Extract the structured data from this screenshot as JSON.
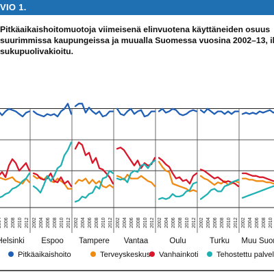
{
  "figure_label": "VIO 1.",
  "title_lines": [
    "Pitkäaikaishoitomuotoja viimeisenä elinvuotena käyttäneiden osuus",
    "suurimmissa kaupungeissa ja muualla Suomessa vuosina 2002–13, ikä- ja",
    "sukupuolivakioitu."
  ],
  "chart_data": {
    "type": "line",
    "title": "Pitkäaikaishoitomuotoja viimeisenä elinvuotena käyttäneiden osuus suurimmissa kaupungeissa ja muualla Suomessa vuosina 2002–13, ikä- ja sukupuolivakioitu.",
    "xlabel": "",
    "ylabel": "",
    "x_ticks": [
      "2002",
      "2004",
      "2006",
      "2008",
      "2010",
      "2012"
    ],
    "legend_position": "bottom",
    "grid": "horizontal reference lines",
    "series_colors": {
      "Pitkäaikaishoito": "#1f5fb5",
      "Terveyskeskus": "#f08a12",
      "Vanhainkoti": "#d8162a",
      "Tehostettu palveluasuminen": "#1fb0b4"
    },
    "panels": [
      {
        "name": "Helsinki",
        "x": [
          2002,
          2003,
          2004,
          2005,
          2006,
          2007,
          2008,
          2009,
          2010,
          2011,
          2012,
          2013
        ],
        "series": [
          {
            "name": "Pitkäaikaishoito",
            "values": [
              71.5,
              72.5,
              72,
              70.5,
              72,
              73,
              72.5,
              72,
              71,
              70,
              71.5,
              72
            ]
          },
          {
            "name": "Terveyskeskus",
            "values": [
              46.5,
              47,
              46.5,
              46,
              45.5,
              46,
              46.5,
              45,
              44.5,
              44,
              46,
              44.5
            ]
          },
          {
            "name": "Vanhainkoti",
            "values": [
              45.5,
              46,
              47,
              48.5,
              46.5,
              51,
              53.5,
              52,
              49,
              50.5,
              52,
              49
            ]
          },
          {
            "name": "Tehostettu palveluasuminen",
            "values": [
              38,
              37.5,
              38.5,
              39,
              40,
              40.5,
              42,
              42.5,
              43.5,
              45,
              46,
              48
            ]
          }
        ]
      },
      {
        "name": "Espoo",
        "x": [
          2002,
          2003,
          2004,
          2005,
          2006,
          2007,
          2008,
          2009,
          2010,
          2011,
          2012,
          2013
        ],
        "series": [
          {
            "name": "Pitkäaikaishoito",
            "values": [
              72,
              71,
              70.5,
              70,
              71,
              70.5,
              71,
              70,
              72,
              73,
              75,
              71
            ]
          },
          {
            "name": "Terveyskeskus",
            "values": [
              47,
              46,
              46.5,
              45.5,
              47,
              45,
              44.5,
              46,
              45,
              44,
              42,
              42
            ]
          },
          {
            "name": "Vanhainkoti",
            "values": [
              48,
              47.5,
              46,
              45.5,
              46,
              48,
              45,
              44.5,
              46.5,
              44,
              45,
              43
            ]
          },
          {
            "name": "Tehostettu palveluasuminen",
            "values": [
              43,
              42,
              40.5,
              43.5,
              47,
              45,
              47,
              50,
              51,
              55,
              57,
              60
            ]
          }
        ]
      },
      {
        "name": "Tampere",
        "x": [
          2002,
          2003,
          2004,
          2005,
          2006,
          2007,
          2008,
          2009,
          2010,
          2011,
          2012,
          2013
        ],
        "series": [
          {
            "name": "Pitkäaikaishoito",
            "values": [
              74,
              75,
              75,
              71.5,
              73.5,
              72,
              71,
              72,
              70,
              70.5,
              72,
              72
            ]
          },
          {
            "name": "Terveyskeskus",
            "values": [
              44,
              45.5,
              45,
              46,
              44,
              45.5,
              44,
              45,
              43,
              42.5,
              43.5,
              42.5
            ]
          },
          {
            "name": "Vanhainkoti",
            "values": [
              57.5,
              60,
              59,
              55,
              56,
              52,
              54,
              50,
              49.5,
              48,
              46.5,
              44
            ]
          },
          {
            "name": "Tehostettu palveluasuminen",
            "values": [
              37,
              37.5,
              39,
              38.5,
              40,
              40.5,
              43,
              42,
              46,
              46.5,
              49,
              48
            ]
          }
        ]
      },
      {
        "name": "Vantaa",
        "x": [
          2002,
          2003,
          2004,
          2005,
          2006,
          2007,
          2008,
          2009,
          2010,
          2011,
          2012,
          2013
        ],
        "series": [
          {
            "name": "Pitkäaikaishoito",
            "values": [
              73,
              71,
              70.5,
              72,
              73,
              71,
              72,
              72.5,
              70,
              70.5,
              72,
              72
            ]
          },
          {
            "name": "Terveyskeskus",
            "values": [
              47,
              46.5,
              45.5,
              47.5,
              46,
              46,
              46,
              47,
              46,
              45,
              44.5,
              43
            ]
          },
          {
            "name": "Vanhainkoti",
            "values": [
              57.5,
              58,
              57,
              55,
              53,
              51,
              53,
              50,
              52,
              51,
              51.5,
              54
            ]
          },
          {
            "name": "Tehostettu palveluasuminen",
            "values": [
              46,
              45.5,
              46,
              44.5,
              48,
              49,
              48.5,
              51,
              51.5,
              50,
              52,
              53
            ]
          }
        ]
      },
      {
        "name": "Oulu",
        "x": [
          2002,
          2003,
          2004,
          2005,
          2006,
          2007,
          2008,
          2009,
          2010,
          2011,
          2012,
          2013
        ],
        "series": [
          {
            "name": "Pitkäaikaishoito",
            "values": [
              72,
              73,
              71.5,
              72,
              73,
              72.5,
              71,
              70.5,
              71,
              72,
              72.5,
              72
            ]
          },
          {
            "name": "Terveyskeskus",
            "values": [
              52.5,
              50.5,
              49,
              48.5,
              44,
              43.5,
              43,
              42.5,
              42,
              41,
              41.5,
              41
            ]
          },
          {
            "name": "Vanhainkoti",
            "values": [
              54,
              53,
              51.5,
              50.5,
              48,
              46,
              46.5,
              45,
              45.5,
              44,
              47,
              48
            ]
          },
          {
            "name": "Tehostettu palveluasuminen",
            "values": [
              38,
              38.5,
              38,
              38.5,
              40,
              39,
              39,
              39.5,
              41,
              41.5,
              44,
              44.5
            ]
          }
        ]
      },
      {
        "name": "Turku",
        "x": [
          2002,
          2003,
          2004,
          2005,
          2006,
          2007,
          2008,
          2009,
          2010,
          2011,
          2012,
          2013
        ],
        "series": [
          {
            "name": "Pitkäaikaishoito",
            "values": [
              72.5,
              71.5,
              73,
              72,
              71,
              72,
              72,
              71,
              72,
              71,
              72,
              72
            ]
          },
          {
            "name": "Terveyskeskus",
            "values": [
              47,
              46,
              45.5,
              44.5,
              43.5,
              44.5,
              44,
              45,
              43.5,
              44,
              45,
              44.5
            ]
          },
          {
            "name": "Vanhainkoti",
            "values": [
              49.5,
              49,
              48,
              47,
              46,
              46.5,
              45.5,
              44.5,
              45,
              44.5,
              44,
              43
            ]
          },
          {
            "name": "Tehostettu palveluasuminen",
            "values": [
              38,
              39,
              40,
              41.5,
              42,
              41,
              41,
              43,
              43.5,
              44.5,
              45,
              45.5
            ]
          }
        ]
      },
      {
        "name": "Muu Suomi",
        "x": [
          2002,
          2003,
          2004,
          2005,
          2006,
          2007,
          2008,
          2009,
          2010,
          2011,
          2012,
          2013
        ],
        "series": [
          {
            "name": "Pitkäaikaishoito",
            "values": [
              71,
              71.5,
              71,
              71.5,
              71,
              72,
              71.5,
              72,
              72.5,
              71.5,
              72,
              72.5
            ]
          },
          {
            "name": "Terveyskeskus",
            "values": [
              46,
              46,
              45.5,
              45.5,
              45,
              45,
              45,
              44.5,
              44.5,
              44,
              44,
              44
            ]
          },
          {
            "name": "Vanhainkoti",
            "values": [
              48,
              48,
              47.5,
              47,
              47,
              46.5,
              46.5,
              46,
              45.5,
              45,
              45,
              44.5
            ]
          },
          {
            "name": "Tehostettu palveluasuminen",
            "values": [
              38.5,
              39,
              39.5,
              40,
              40.5,
              41,
              41.5,
              42,
              42.5,
              43,
              43.5,
              44
            ]
          }
        ]
      }
    ]
  }
}
